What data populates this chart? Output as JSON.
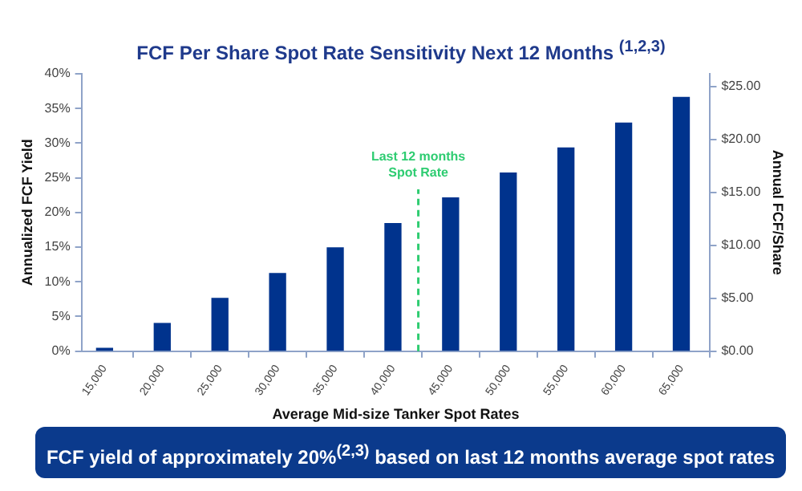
{
  "chart_data": {
    "type": "bar",
    "title": "FCF Per Share Spot Rate Sensitivity Next 12 Months $^{(1,2,3)}$",
    "xlabel": "Average Mid-size Tanker Spot Rates",
    "ylabel": "Annualized FCF Yield",
    "y2label": "Annual FCF/Share",
    "x": [
      15000,
      20000,
      25000,
      30000,
      35000,
      40000,
      45000,
      50000,
      55000,
      60000,
      65000
    ],
    "values": [
      0.4,
      4.0,
      7.6,
      11.2,
      14.9,
      18.4,
      22.1,
      25.7,
      29.3,
      32.9,
      36.6
    ],
    "color": "#00338d",
    "xlim": [
      13000,
      67500
    ],
    "xticks": [
      {
        "value": 15000,
        "label": "15,000"
      },
      {
        "value": 20000,
        "label": "20,000"
      },
      {
        "value": 25000,
        "label": "25,000"
      },
      {
        "value": 30000,
        "label": "30,000"
      },
      {
        "value": 35000,
        "label": "35,000"
      },
      {
        "value": 40000,
        "label": "40,000"
      },
      {
        "value": 45000,
        "label": "45,000"
      },
      {
        "value": 50000,
        "label": "50,000"
      },
      {
        "value": 55000,
        "label": "55,000"
      },
      {
        "value": 60000,
        "label": "60,000"
      },
      {
        "value": 65000,
        "label": "65,000"
      }
    ],
    "ylim": [
      0,
      40
    ],
    "yticks": [
      {
        "value": 0,
        "label": "0%"
      },
      {
        "value": 5,
        "label": "5%"
      },
      {
        "value": 10,
        "label": "10%"
      },
      {
        "value": 15,
        "label": "15%"
      },
      {
        "value": 20,
        "label": "20%"
      },
      {
        "value": 25,
        "label": "25%"
      },
      {
        "value": 30,
        "label": "30%"
      },
      {
        "value": 35,
        "label": "35%"
      },
      {
        "value": 40,
        "label": "40%"
      }
    ],
    "y2lim": [
      0,
      26.2
    ],
    "y2ticks": [
      {
        "value": 0,
        "label": "$0.00"
      },
      {
        "value": 5,
        "label": "$5.00"
      },
      {
        "value": 10,
        "label": "$10.00"
      },
      {
        "value": 15,
        "label": "$15.00"
      },
      {
        "value": 20,
        "label": "$20.00"
      },
      {
        "value": 25,
        "label": "$25.00"
      }
    ],
    "ref_lines": [
      {
        "axis": "x",
        "value": 42200,
        "label": "Last 12 months Spot Rate",
        "color": "#2ecc71",
        "line_style": "dashed"
      }
    ],
    "annotations": [
      "FCF yield of approximately 20%$^{(2,3)}$ based on last 12 months average spot rates"
    ],
    "grid": false,
    "legend": false
  }
}
